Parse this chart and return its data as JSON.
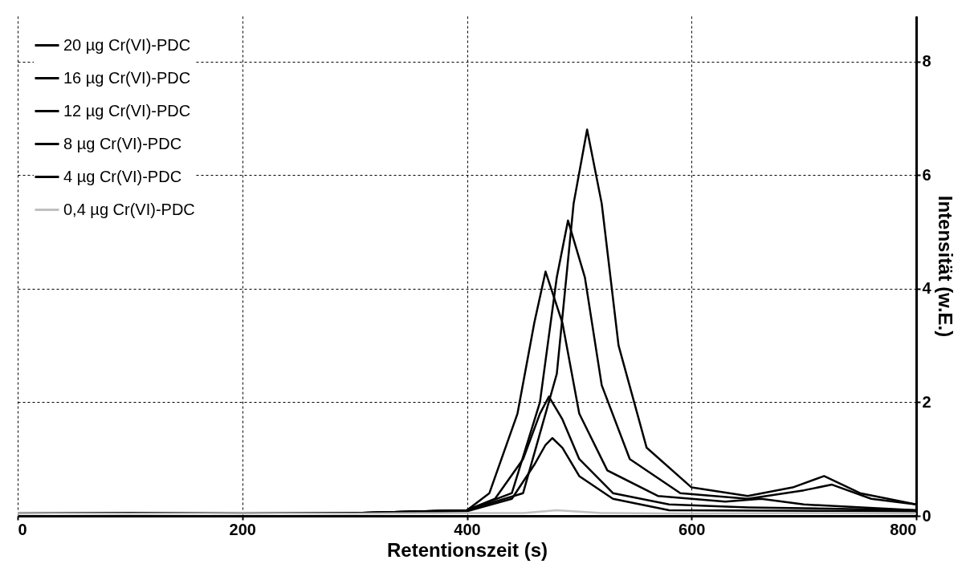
{
  "chart_data": {
    "type": "line",
    "xlabel": "Retentionszeit (s)",
    "ylabel": "Intensität (w.E.)",
    "xlim": [
      0,
      800
    ],
    "xticks": [
      0,
      200,
      400,
      600,
      800
    ],
    "ylim": [
      0,
      8.8
    ],
    "yticks": [
      0,
      2,
      4,
      6,
      8
    ],
    "grid": true,
    "legend": "top left",
    "line_style": "solid",
    "marker": "none",
    "series": [
      {
        "name": "20 µg Cr(VI)-PDC",
        "color": "#000000",
        "x": [
          0,
          100,
          200,
          300,
          400,
          450,
          480,
          495,
          507,
          520,
          535,
          560,
          600,
          650,
          690,
          718,
          750,
          800
        ],
        "values": [
          0.05,
          0.05,
          0.05,
          0.05,
          0.1,
          0.4,
          2.5,
          5.5,
          6.8,
          5.5,
          3,
          1.2,
          0.5,
          0.35,
          0.5,
          0.7,
          0.4,
          0.2
        ]
      },
      {
        "name": "16 µg Cr(VI)-PDC",
        "color": "#000000",
        "x": [
          0,
          100,
          200,
          300,
          400,
          440,
          465,
          480,
          490,
          505,
          520,
          545,
          590,
          650,
          700,
          725,
          760,
          800
        ],
        "values": [
          0.05,
          0.05,
          0.05,
          0.05,
          0.1,
          0.4,
          2,
          4.2,
          5.2,
          4.2,
          2.3,
          1,
          0.4,
          0.3,
          0.45,
          0.55,
          0.3,
          0.2
        ]
      },
      {
        "name": "12 µg Cr(VI)-PDC",
        "color": "#000000",
        "x": [
          0,
          100,
          200,
          300,
          400,
          420,
          445,
          460,
          470,
          485,
          500,
          525,
          570,
          630,
          662,
          700,
          800
        ],
        "values": [
          0.05,
          0.05,
          0.05,
          0.05,
          0.1,
          0.4,
          1.8,
          3.4,
          4.3,
          3.4,
          1.8,
          0.8,
          0.35,
          0.25,
          0.3,
          0.2,
          0.1
        ]
      },
      {
        "name": "8 µg Cr(VI)-PDC",
        "color": "#000000",
        "x": [
          0,
          100,
          200,
          300,
          400,
          425,
          450,
          465,
          473,
          485,
          500,
          530,
          580,
          650,
          800
        ],
        "values": [
          0.05,
          0.05,
          0.05,
          0.05,
          0.1,
          0.3,
          1,
          1.8,
          2.1,
          1.7,
          1,
          0.4,
          0.2,
          0.15,
          0.1
        ]
      },
      {
        "name": "4 µg Cr(VI)-PDC",
        "color": "#000000",
        "x": [
          0,
          100,
          200,
          300,
          400,
          440,
          460,
          470,
          476,
          485,
          500,
          530,
          580,
          800
        ],
        "values": [
          0.05,
          0.05,
          0.05,
          0.05,
          0.08,
          0.3,
          0.9,
          1.25,
          1.37,
          1.2,
          0.7,
          0.3,
          0.1,
          0.08
        ]
      },
      {
        "name": "0,4 µg Cr(VI)-PDC",
        "color": "#c0c0c0",
        "x": [
          0,
          100,
          200,
          300,
          400,
          450,
          480,
          520,
          600,
          700,
          800
        ],
        "values": [
          0.05,
          0.04,
          0.05,
          0.04,
          0.05,
          0.05,
          0.1,
          0.05,
          0.04,
          0.05,
          0.04
        ]
      }
    ]
  }
}
